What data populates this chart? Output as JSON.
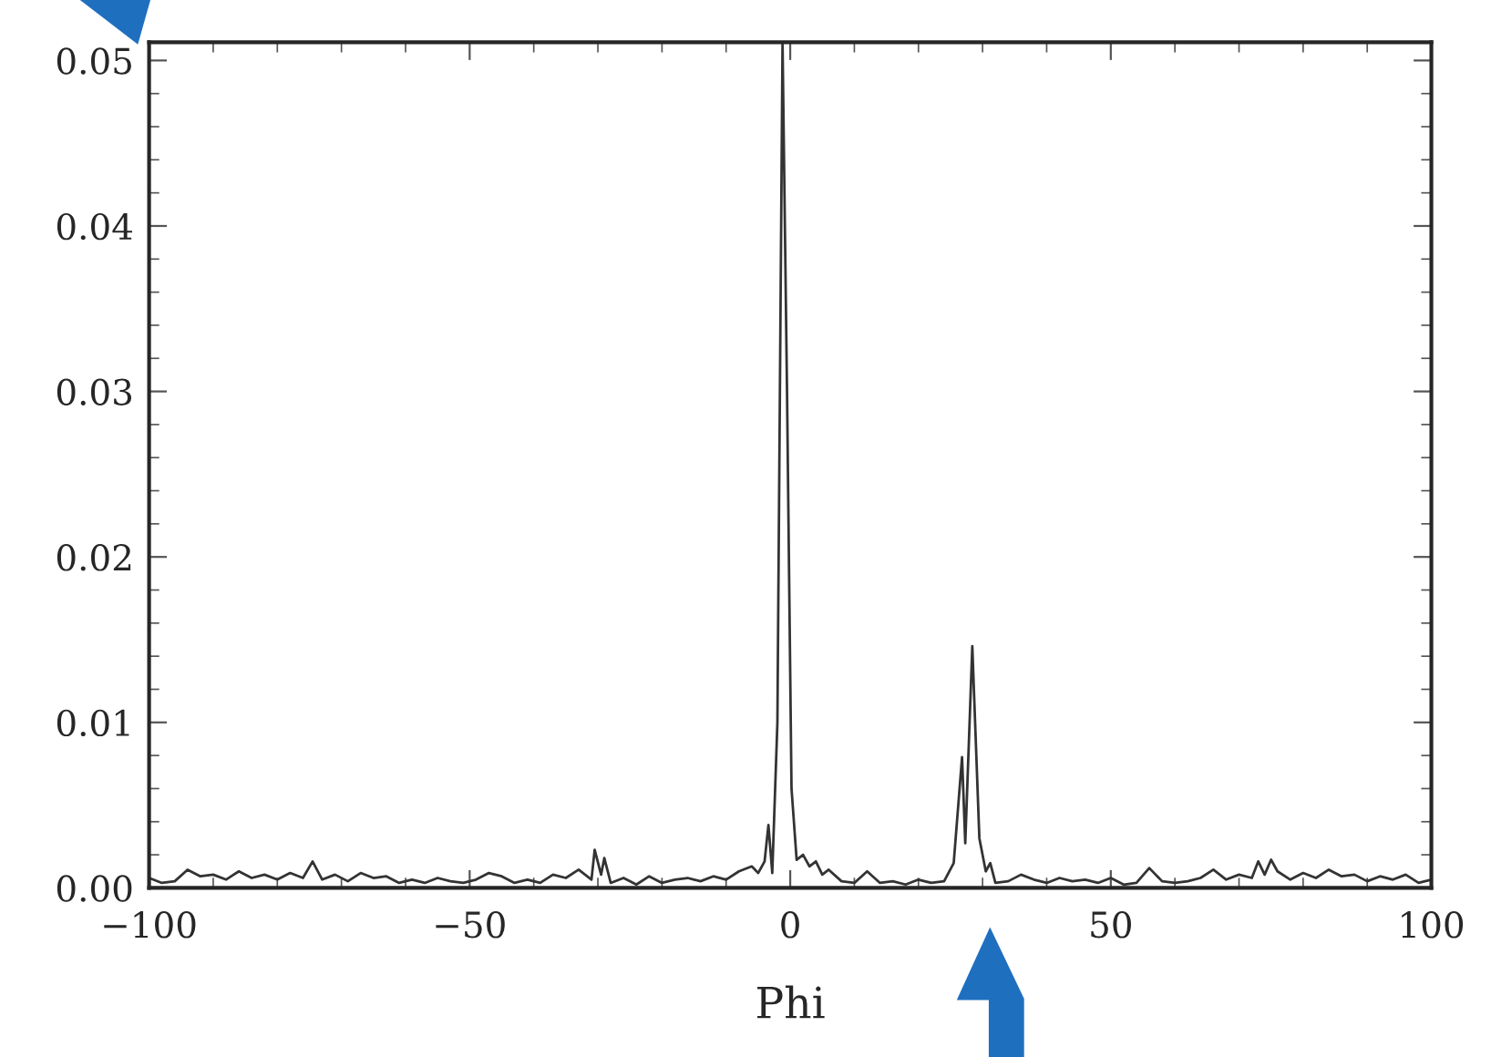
{
  "chart_data": {
    "type": "line",
    "xlabel": "Phi",
    "xlim": [
      -100,
      100
    ],
    "ylim": [
      0,
      0.0511
    ],
    "xticks": [
      {
        "value": -100,
        "label": "−100"
      },
      {
        "value": -50,
        "label": "−50"
      },
      {
        "value": 0,
        "label": "0"
      },
      {
        "value": 50,
        "label": "50"
      },
      {
        "value": 100,
        "label": "100"
      }
    ],
    "yticks": [
      {
        "value": 0,
        "label": "0.00"
      },
      {
        "value": 0.01,
        "label": "0.01"
      },
      {
        "value": 0.02,
        "label": "0.02"
      },
      {
        "value": 0.03,
        "label": "0.03"
      },
      {
        "value": 0.04,
        "label": "0.04"
      },
      {
        "value": 0.05,
        "label": "0.05"
      }
    ],
    "grid": false,
    "legend": false,
    "marker": "none",
    "line_style": "solid",
    "series": [
      {
        "color": "#333333",
        "x": [
          -100,
          -98,
          -96,
          -94,
          -92,
          -90,
          -88,
          -86,
          -84,
          -82,
          -80,
          -78,
          -76,
          -74.5,
          -73,
          -71,
          -69,
          -67,
          -65,
          -63,
          -61,
          -59,
          -57,
          -55,
          -53,
          -51,
          -49,
          -47,
          -45,
          -43,
          -41,
          -39,
          -37,
          -35,
          -33,
          -31,
          -30.5,
          -29.5,
          -29,
          -28,
          -26,
          -24,
          -22,
          -20,
          -18,
          -16,
          -14,
          -12,
          -10,
          -8,
          -6,
          -5,
          -4,
          -3.4,
          -2.8,
          -2,
          -1.2,
          -0.5,
          0.2,
          1,
          2,
          3,
          4,
          5,
          6,
          8,
          10,
          12,
          14,
          16,
          18,
          20,
          22,
          24,
          25.5,
          26.8,
          27.3,
          28.4,
          29.5,
          30.5,
          31.2,
          32,
          34,
          36,
          38,
          40,
          42,
          44,
          46,
          48,
          50,
          52,
          54,
          56,
          58,
          60,
          62,
          64,
          66,
          68,
          70,
          72,
          73,
          74,
          75,
          76,
          78,
          80,
          82,
          84,
          86,
          88,
          90,
          92,
          94,
          96,
          98,
          100
        ],
        "values": [
          0.0006,
          0.0003,
          0.0004,
          0.0011,
          0.0007,
          0.0008,
          0.0005,
          0.001,
          0.0006,
          0.0008,
          0.0005,
          0.0009,
          0.0006,
          0.0016,
          0.0005,
          0.0008,
          0.0004,
          0.0009,
          0.0006,
          0.0007,
          0.0003,
          0.0005,
          0.0003,
          0.0006,
          0.0004,
          0.0003,
          0.0005,
          0.0009,
          0.0007,
          0.0003,
          0.0005,
          0.0003,
          0.0008,
          0.0006,
          0.0011,
          0.0005,
          0.0023,
          0.0008,
          0.0018,
          0.0003,
          0.0006,
          0.0002,
          0.0007,
          0.0003,
          0.0005,
          0.0006,
          0.0004,
          0.0007,
          0.0005,
          0.001,
          0.0013,
          0.0009,
          0.0016,
          0.0038,
          0.0009,
          0.01,
          0.0511,
          0.03,
          0.006,
          0.0017,
          0.002,
          0.0013,
          0.0016,
          0.0008,
          0.0011,
          0.0004,
          0.0003,
          0.001,
          0.0003,
          0.0004,
          0.0002,
          0.0005,
          0.0003,
          0.0004,
          0.0015,
          0.0079,
          0.0027,
          0.0146,
          0.003,
          0.001,
          0.0015,
          0.0003,
          0.0004,
          0.0008,
          0.0005,
          0.0003,
          0.0006,
          0.0004,
          0.0005,
          0.0003,
          0.0006,
          0.0002,
          0.0003,
          0.0012,
          0.0004,
          0.0003,
          0.0004,
          0.0006,
          0.0011,
          0.0005,
          0.0008,
          0.0006,
          0.0016,
          0.0008,
          0.0017,
          0.001,
          0.0005,
          0.0009,
          0.0006,
          0.0011,
          0.0007,
          0.0008,
          0.0004,
          0.0007,
          0.0005,
          0.0008,
          0.0003,
          0.0005
        ]
      }
    ]
  }
}
